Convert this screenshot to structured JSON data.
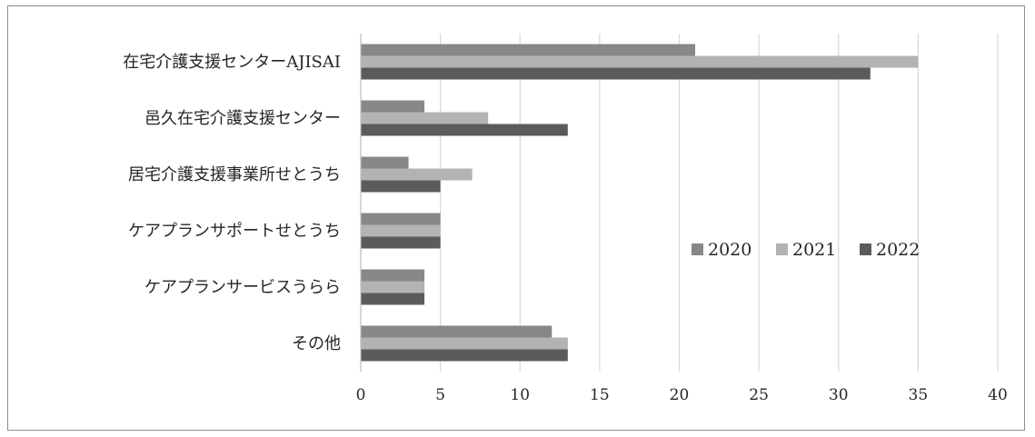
{
  "chart_data": {
    "type": "bar",
    "orientation": "horizontal",
    "title": "",
    "xlabel": "",
    "ylabel": "",
    "categories": [
      "在宅介護支援センターAJISAI",
      "邑久在宅介護支援センター",
      "居宅介護支援事業所せとうち",
      "ケアプランサポートせとうち",
      "ケアプランサービスうらら",
      "その他"
    ],
    "series": [
      {
        "name": "2020",
        "color": "#878787",
        "values": [
          21,
          4,
          3,
          5,
          4,
          12
        ]
      },
      {
        "name": "2021",
        "color": "#b3b3b3",
        "values": [
          35,
          8,
          7,
          5,
          4,
          13
        ]
      },
      {
        "name": "2022",
        "color": "#5b5b5b",
        "values": [
          32,
          13,
          5,
          5,
          4,
          13
        ]
      }
    ],
    "xlim": [
      0,
      40
    ],
    "xticks": [
      0,
      5,
      10,
      15,
      20,
      25,
      30,
      35,
      40
    ],
    "grid": "vertical",
    "legend_position": "right"
  }
}
